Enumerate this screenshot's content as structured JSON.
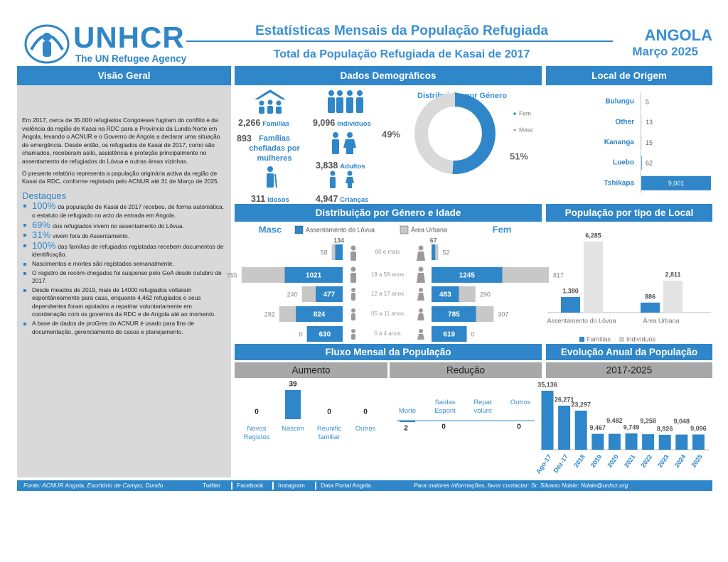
{
  "header": {
    "logo": "UNHCR",
    "logo_sub": "The UN Refugee Agency",
    "title": "Estatísticas Mensais da População Refugiada",
    "subtitle": "Total da População Refugiada de Kasai de 2017",
    "country": "ANGOLA",
    "date": "Março 2025"
  },
  "overview": {
    "title": "Visão Geral",
    "paragraphs": [
      "Em 2017, cerca de 35.000 refugiados Congoleses fugiram do conflito e da violência da região de Kasai na RDC para a Província da Lunda Norte em Angola, levando o ACNUR e o Governo de Angola a declarar uma situação de emergência. Desde então, os refugiados de Kasai de 2017, como são chamados, receberam asilo, assistência e proteção principalmente no assentamento de refugiados do Lóvua e outras áreas vizinhas.",
      "O presente relatório representa a população originária activa da região de Kasai da RDC, conforme registado pelo ACNUR até 31 de Março de 2025."
    ],
    "highlights_title": "Destaques",
    "highlights": [
      {
        "value": "100%",
        "text": "da população de Kasai de 2017 recebeu, de forma automática, o estatuto de refugiado no acto da entrada em Angola."
      },
      {
        "value": "69%",
        "text": "dos refugiados vivem no assentamento do Lôvua."
      },
      {
        "value": "31%",
        "text": "vivem fora do Assentamento."
      },
      {
        "value": "100%",
        "text": "das famílias de refugiados registadas recebem documentos de identificação."
      },
      {
        "text": "Nascimentos e mortes são registados semanalmente."
      },
      {
        "text": "O registro de recém-chegados foi suspenso pelo GoA desde outubro de 2017."
      },
      {
        "text": "Desde meados de 2019, mais de 14000 refugiados voltaram espontâneamente para casa, enquanto 4,462 refugiados e seus dependentes foram apoiados a repatriar voluntariamente em coordenação com os governos da RDC e de Angola até ao momento."
      },
      {
        "text": "A base de dados de proGres do ACNUR é usado para fins de documentação, gerenciamento de casos e planejamento."
      }
    ]
  },
  "demographics": {
    "title": "Dados Demográficos",
    "stats": [
      {
        "value": "2,266",
        "label": "Famílias"
      },
      {
        "value": "9,096",
        "label": "Indivíduos"
      },
      {
        "value": "893",
        "label": "Famílias chefiadas por mulheres"
      },
      {
        "value": "3,838",
        "label": "Adultos"
      },
      {
        "value": "311",
        "label": "Idosos"
      },
      {
        "value": "4,947",
        "label": "Crianças"
      }
    ],
    "gender": {
      "type": "pie",
      "title": "Distribuição por Género",
      "categories": [
        "Fem",
        "Masc"
      ],
      "values": [
        51,
        49
      ],
      "value_labels": [
        "51%",
        "49%"
      ],
      "colors": [
        "#2f86c8",
        "#d9d9d9"
      ]
    }
  },
  "origin": {
    "title": "Local de Origem",
    "chart": {
      "type": "hbar",
      "categories": [
        "Bulungu",
        "Other",
        "Kananga",
        "Luebo",
        "Tshikapa"
      ],
      "values": [
        5,
        13,
        15,
        62,
        9001
      ],
      "value_labels": [
        "5",
        "13",
        "15",
        "62",
        "9,001"
      ],
      "color": "#2f86c8"
    }
  },
  "age_gender": {
    "title": "Distribuição por Género e Idade",
    "type": "pyramid",
    "masc_label": "Masc",
    "fem_label": "Fem",
    "categories": [
      "60 e mais",
      "18 a 59 anos",
      "12 a 17 anos",
      "05 a 11 anos",
      "0 à 4 anos"
    ],
    "series": [
      {
        "name": "Assentamento do Lôvua",
        "color": "#2f86c8",
        "masc": [
          134,
          1021,
          477,
          824,
          630
        ],
        "fem": [
          67,
          1245,
          483,
          785,
          619
        ]
      },
      {
        "name": "Área Urbana",
        "color": "#c8c8c8",
        "masc": [
          58,
          755,
          240,
          292,
          0
        ],
        "fem": [
          52,
          817,
          290,
          307,
          0
        ]
      }
    ]
  },
  "location_type": {
    "title": "População por tipo de Local",
    "chart": {
      "type": "bar",
      "categories": [
        "Assentamento do Lôvua",
        "Área Urbana"
      ],
      "series": [
        {
          "name": "Famílias",
          "color": "#2f86c8",
          "values": [
            1380,
            886
          ],
          "value_labels": [
            "1,380",
            "886"
          ]
        },
        {
          "name": "Indivíduos",
          "color": "#e3e3e3",
          "values": [
            6285,
            2811
          ],
          "value_labels": [
            "6,285",
            "2,811"
          ]
        }
      ]
    }
  },
  "flow": {
    "title": "Fluxo Mensal da População",
    "increase": {
      "title": "Aumento",
      "type": "bar",
      "categories": [
        "Novos Registos",
        "Nascim",
        "Reunific familiar",
        "Outros"
      ],
      "values": [
        0,
        39,
        0,
        0
      ],
      "color": "#2f86c8"
    },
    "decrease": {
      "title": "Redução",
      "type": "bar",
      "categories": [
        "Morte",
        "Saidas Espont",
        "Repat volunt",
        "Outros"
      ],
      "values": [
        2,
        0,
        null,
        0
      ],
      "color": "#2f86c8"
    }
  },
  "annual": {
    "title": "Evolução Anual da População",
    "period": "2017-2025",
    "chart": {
      "type": "bar",
      "categories": [
        "Ago-17",
        "Dez-17",
        "2018",
        "2019",
        "2020",
        "2021",
        "2022",
        "2023",
        "2024",
        "2025"
      ],
      "values": [
        35136,
        26271,
        23297,
        9467,
        9482,
        9749,
        9258,
        8926,
        9048,
        9096
      ],
      "value_labels": [
        "35,136",
        "26,271",
        "23,297",
        "9,467",
        "9,482",
        "9,749",
        "9,258",
        "8,926",
        "9,048",
        "9,096"
      ],
      "color": "#2f86c8"
    }
  },
  "footer": {
    "source": "Fonte: ACNUR Angola, Escritório de Campo, Dundo",
    "links": [
      "Twitter",
      "Facebook",
      "Instagram",
      "Data Portal Angola"
    ],
    "contact": "Para maiores informações, favor contactar: Sr. Silvano Ndaie: Ndaie@unhcr.org"
  }
}
